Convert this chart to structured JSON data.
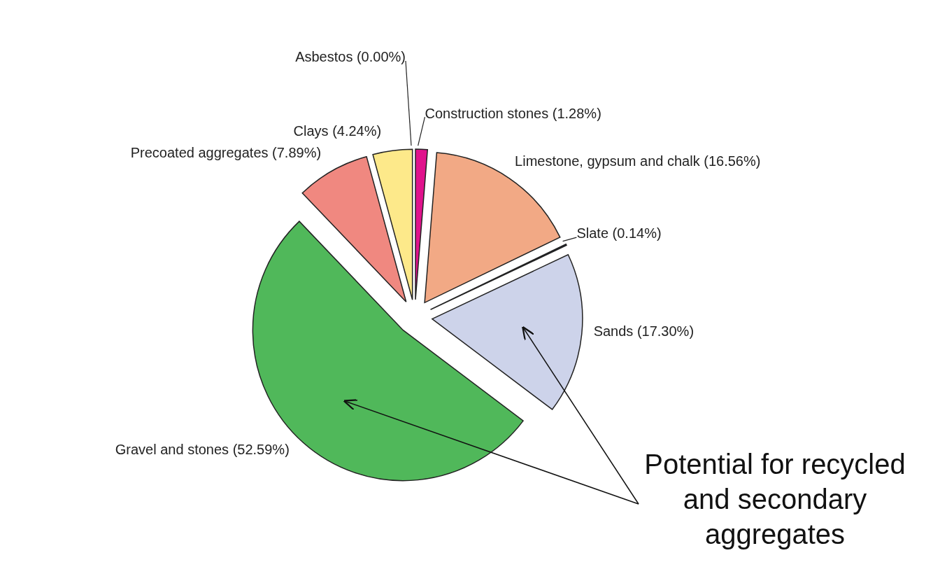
{
  "chart_data": {
    "type": "pie",
    "categories": [
      "Construction stones",
      "Limestone, gypsum and chalk",
      "Slate",
      "Sands",
      "Gravel and stones",
      "Precoated aggregates",
      "Clays",
      "Asbestos"
    ],
    "values": [
      1.28,
      16.56,
      0.14,
      17.3,
      52.59,
      7.89,
      4.24,
      0.0
    ],
    "value_labels": [
      "(1.28%)",
      "(16.56%)",
      "(0.14%)",
      "(17.30%)",
      "(52.59%)",
      "(7.89%)",
      "(4.24%)",
      "(0.00%)"
    ],
    "colors": [
      "#e0128c",
      "#f2a985",
      "#1f2a44",
      "#cdd3ea",
      "#50b85a",
      "#f08880",
      "#fde98a",
      "#ffffff"
    ],
    "annotations": [
      "Potential for recycled and secondary aggregates"
    ]
  }
}
